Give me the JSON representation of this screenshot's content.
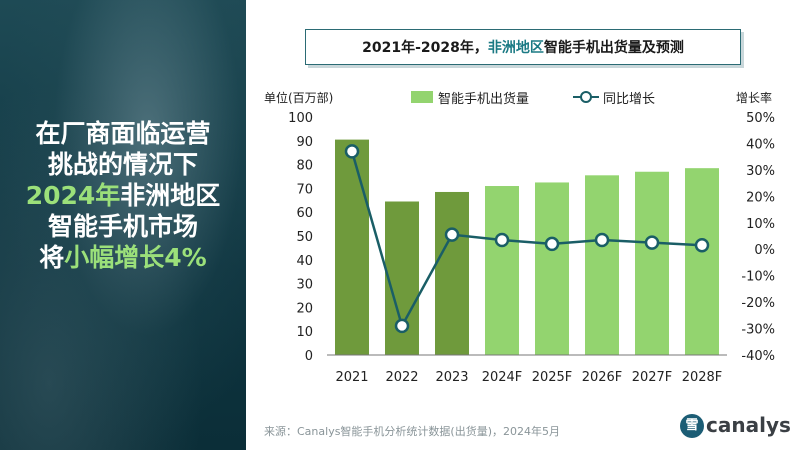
{
  "headline": {
    "line1": "在厂商面临运营",
    "line2": "挑战的情况下",
    "line3_green": "2024年",
    "line3_white": "非洲地区",
    "line4": "智能手机市场",
    "line5_white": "将",
    "line5_green": "小幅增长4%"
  },
  "title": {
    "part1": "2021年-2028年，",
    "part2": "非洲地区",
    "part3": "智能手机出货量及预测"
  },
  "units": {
    "left": "单位(百万部)",
    "right": "增长率"
  },
  "legend": {
    "bar": "智能手机出货量",
    "line": "同比增长"
  },
  "source": "来源：Canalys智能手机分析统计数据(出货量)，2024年5月",
  "watermark": {
    "icon": "雪",
    "text": "canalys"
  },
  "colors": {
    "actual_bar": "#6f9a3c",
    "forecast_bar": "#93d46f",
    "line": "#1a5e66",
    "panel": "#0f3a44",
    "accent_green": "#9be07a"
  },
  "chart_data": {
    "type": "bar",
    "categories": [
      "2021",
      "2022",
      "2023",
      "2024F",
      "2025F",
      "2026F",
      "2027F",
      "2028F"
    ],
    "series": [
      {
        "name": "智能手机出货量",
        "type": "bar",
        "axis": "left",
        "values": [
          90.5,
          64.5,
          68.5,
          71,
          72.5,
          75.5,
          77,
          78.5
        ]
      },
      {
        "name": "同比增长",
        "type": "line",
        "axis": "right",
        "unit": "%",
        "values": [
          37,
          -29,
          5.5,
          3.5,
          2,
          3.5,
          2.5,
          1.5
        ]
      }
    ],
    "y_left": {
      "range": [
        0,
        100
      ],
      "ticks": [
        "0",
        "10",
        "20",
        "30",
        "40",
        "50",
        "60",
        "70",
        "80",
        "90",
        "100"
      ]
    },
    "y_right": {
      "range": [
        -40,
        50
      ],
      "ticks": [
        "-40%",
        "-30%",
        "-20%",
        "-10%",
        "0%",
        "10%",
        "20%",
        "30%",
        "40%",
        "50%"
      ]
    },
    "grid": false,
    "legend_position": "top"
  }
}
